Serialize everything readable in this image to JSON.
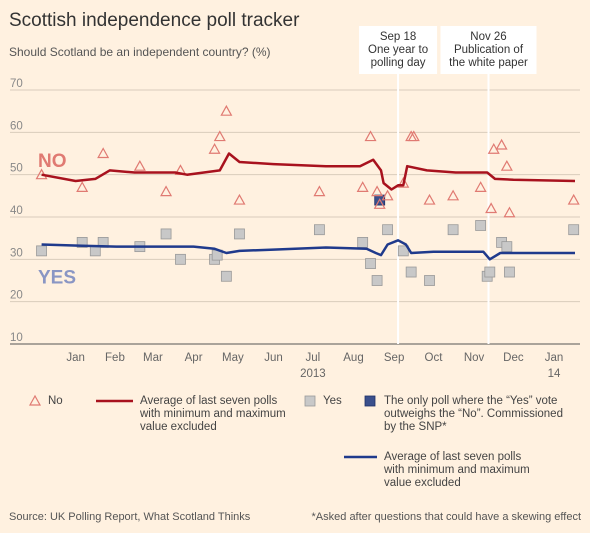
{
  "header": {
    "title": "Scottish independence poll tracker",
    "subtitle": "Should Scotland be an independent country? (%)"
  },
  "footer": {
    "source": "Source: UK Polling Report, What Scotland Thinks",
    "footnote": "*Asked after questions that could have a skewing effect"
  },
  "legend": {
    "no_label": "No",
    "yes_label": "Yes",
    "no_avg_label": "Average of last seven polls with minimum and maximum value excluded",
    "snp_label": "The only poll where the “Yes” vote outweighs the “No”. Commissioned by the SNP*",
    "yes_avg_label": "Average of last seven polls with minimum and maximum value excluded"
  },
  "colors": {
    "background": "#fff1e0",
    "no_color": "#a8121e",
    "no_marker": "#e07a72",
    "yes_color": "#1f3a8c",
    "yes_marker_fill": "#c8c8c8",
    "snp_fill": "#3a4f8c",
    "no_text": "#e07a72",
    "yes_text": "#8a96c4"
  },
  "chart_data": {
    "type": "scatter",
    "x_axis": {
      "range": [
        "2012-12-15",
        "2014-01-31"
      ],
      "ticks": [
        {
          "date": "2013-01-15",
          "label": "Jan"
        },
        {
          "date": "2013-02-14",
          "label": "Feb"
        },
        {
          "date": "2013-03-15",
          "label": "Mar"
        },
        {
          "date": "2013-04-15",
          "label": "Apr"
        },
        {
          "date": "2013-05-15",
          "label": "May"
        },
        {
          "date": "2013-06-15",
          "label": "Jun"
        },
        {
          "date": "2013-07-15",
          "label": "Jul"
        },
        {
          "date": "2013-08-15",
          "label": "Aug"
        },
        {
          "date": "2013-09-15",
          "label": "Sep"
        },
        {
          "date": "2013-10-15",
          "label": "Oct"
        },
        {
          "date": "2013-11-15",
          "label": "Nov"
        },
        {
          "date": "2013-12-15",
          "label": "Dec"
        },
        {
          "date": "2014-01-15",
          "label": "Jan"
        }
      ],
      "year_labels": [
        {
          "date": "2013-07-15",
          "label": "2013"
        },
        {
          "date": "2014-01-15",
          "label": "14"
        }
      ]
    },
    "y_axis": {
      "range": [
        10,
        70
      ],
      "ticks": [
        10,
        20,
        30,
        40,
        50,
        60,
        70
      ],
      "grid": true
    },
    "series_labels": {
      "no": "NO",
      "yes": "YES"
    },
    "annotations": [
      {
        "date": "2013-09-18",
        "lines": [
          "Sep 18",
          "One year to",
          "polling day"
        ]
      },
      {
        "date": "2013-11-26",
        "lines": [
          "Nov 26",
          "Publication of",
          "the white paper"
        ]
      }
    ],
    "no_polls": [
      [
        "2012-12-20",
        50
      ],
      [
        "2013-01-20",
        47
      ],
      [
        "2013-02-05",
        55
      ],
      [
        "2013-03-05",
        52
      ],
      [
        "2013-03-25",
        46
      ],
      [
        "2013-04-05",
        51
      ],
      [
        "2013-05-01",
        56
      ],
      [
        "2013-05-05",
        59
      ],
      [
        "2013-05-10",
        65
      ],
      [
        "2013-05-20",
        44
      ],
      [
        "2013-07-20",
        46
      ],
      [
        "2013-08-22",
        47
      ],
      [
        "2013-08-28",
        59
      ],
      [
        "2013-09-02",
        46
      ],
      [
        "2013-09-04",
        43
      ],
      [
        "2013-09-10",
        45
      ],
      [
        "2013-09-22",
        48
      ],
      [
        "2013-09-28",
        59
      ],
      [
        "2013-09-30",
        59
      ],
      [
        "2013-10-12",
        44
      ],
      [
        "2013-10-30",
        45
      ],
      [
        "2013-11-20",
        47
      ],
      [
        "2013-11-28",
        42
      ],
      [
        "2013-11-30",
        56
      ],
      [
        "2013-12-06",
        57
      ],
      [
        "2013-12-10",
        52
      ],
      [
        "2013-12-12",
        41
      ],
      [
        "2014-01-30",
        44
      ]
    ],
    "yes_polls": [
      [
        "2012-12-20",
        32
      ],
      [
        "2013-01-20",
        34
      ],
      [
        "2013-02-05",
        34
      ],
      [
        "2013-01-30",
        32
      ],
      [
        "2013-03-05",
        33
      ],
      [
        "2013-03-25",
        36
      ],
      [
        "2013-04-05",
        30
      ],
      [
        "2013-05-01",
        30
      ],
      [
        "2013-05-03",
        31
      ],
      [
        "2013-05-10",
        26
      ],
      [
        "2013-05-20",
        36
      ],
      [
        "2013-07-20",
        37
      ],
      [
        "2013-08-22",
        34
      ],
      [
        "2013-08-28",
        29
      ],
      [
        "2013-09-02",
        25
      ],
      [
        "2013-09-10",
        37
      ],
      [
        "2013-09-22",
        32
      ],
      [
        "2013-09-28",
        27
      ],
      [
        "2013-10-12",
        25
      ],
      [
        "2013-10-30",
        37
      ],
      [
        "2013-11-20",
        38
      ],
      [
        "2013-11-25",
        26
      ],
      [
        "2013-11-27",
        27
      ],
      [
        "2013-12-06",
        34
      ],
      [
        "2013-12-10",
        33
      ],
      [
        "2013-12-12",
        27
      ],
      [
        "2014-01-30",
        37
      ]
    ],
    "snp_poll": [
      "2013-09-04",
      44
    ],
    "no_average": [
      [
        "2012-12-20",
        50
      ],
      [
        "2013-01-15",
        48.5
      ],
      [
        "2013-01-30",
        49
      ],
      [
        "2013-02-10",
        51
      ],
      [
        "2013-03-01",
        50.5
      ],
      [
        "2013-04-01",
        50.5
      ],
      [
        "2013-04-10",
        50
      ],
      [
        "2013-05-05",
        51
      ],
      [
        "2013-05-12",
        55
      ],
      [
        "2013-05-20",
        53
      ],
      [
        "2013-06-15",
        52.5
      ],
      [
        "2013-07-25",
        52
      ],
      [
        "2013-08-20",
        52
      ],
      [
        "2013-08-30",
        53.5
      ],
      [
        "2013-09-05",
        51
      ],
      [
        "2013-09-07",
        48
      ],
      [
        "2013-09-13",
        46.5
      ],
      [
        "2013-09-18",
        47.5
      ],
      [
        "2013-09-22",
        47.5
      ],
      [
        "2013-09-25",
        52
      ],
      [
        "2013-10-10",
        51
      ],
      [
        "2013-11-01",
        50.5
      ],
      [
        "2013-11-25",
        50.5
      ],
      [
        "2013-12-01",
        49
      ],
      [
        "2013-12-15",
        48.8
      ],
      [
        "2014-01-31",
        48.5
      ]
    ],
    "yes_average": [
      [
        "2012-12-20",
        33.5
      ],
      [
        "2013-01-20",
        33.2
      ],
      [
        "2013-02-15",
        33.0
      ],
      [
        "2013-04-15",
        33.0
      ],
      [
        "2013-05-01",
        32.5
      ],
      [
        "2013-05-10",
        31.5
      ],
      [
        "2013-05-20",
        32.0
      ],
      [
        "2013-06-15",
        32.3
      ],
      [
        "2013-07-25",
        32.8
      ],
      [
        "2013-08-25",
        32.5
      ],
      [
        "2013-09-01",
        31.5
      ],
      [
        "2013-09-05",
        31.0
      ],
      [
        "2013-09-10",
        33.5
      ],
      [
        "2013-09-18",
        34.5
      ],
      [
        "2013-09-24",
        33.5
      ],
      [
        "2013-09-28",
        31.5
      ],
      [
        "2013-10-15",
        31.8
      ],
      [
        "2013-11-22",
        31.8
      ],
      [
        "2013-11-27",
        30.0
      ],
      [
        "2013-12-05",
        31.5
      ],
      [
        "2014-01-31",
        31.5
      ]
    ]
  }
}
